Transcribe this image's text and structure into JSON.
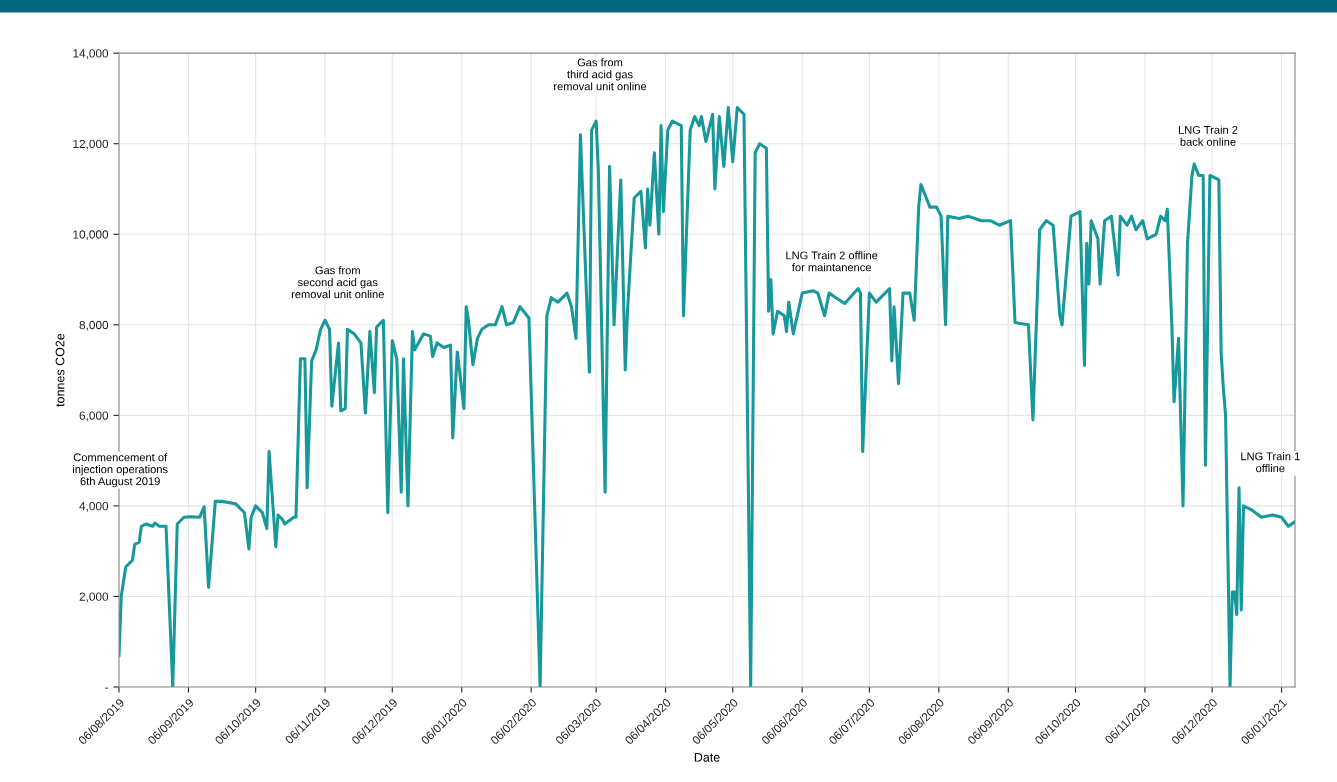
{
  "chart_data": {
    "type": "line",
    "xlabel": "Date",
    "ylabel": "tonnes CO2e",
    "grid": true,
    "legend": false,
    "marker": "none",
    "line_style": "solid",
    "ylim": [
      0,
      14000
    ],
    "yticks": [
      {
        "value": 0,
        "label": "-"
      },
      {
        "value": 2000,
        "label": "2,000"
      },
      {
        "value": 4000,
        "label": "4,000"
      },
      {
        "value": 6000,
        "label": "6,000"
      },
      {
        "value": 8000,
        "label": "8,000"
      },
      {
        "value": 10000,
        "label": "10,000"
      },
      {
        "value": 12000,
        "label": "12,000"
      },
      {
        "value": 14000,
        "label": "14,000"
      }
    ],
    "xlim": [
      "2019-08-06",
      "2021-01-12"
    ],
    "xticks": [
      {
        "value": "2019-08-06",
        "label": "06/08/2019"
      },
      {
        "value": "2019-09-06",
        "label": "06/09/2019"
      },
      {
        "value": "2019-10-06",
        "label": "06/10/2019"
      },
      {
        "value": "2019-11-06",
        "label": "06/11/2019"
      },
      {
        "value": "2019-12-06",
        "label": "06/12/2019"
      },
      {
        "value": "2020-01-06",
        "label": "06/01/2020"
      },
      {
        "value": "2020-02-06",
        "label": "06/02/2020"
      },
      {
        "value": "2020-03-06",
        "label": "06/03/2020"
      },
      {
        "value": "2020-04-06",
        "label": "06/04/2020"
      },
      {
        "value": "2020-05-06",
        "label": "06/05/2020"
      },
      {
        "value": "2020-06-06",
        "label": "06/06/2020"
      },
      {
        "value": "2020-07-06",
        "label": "06/07/2020"
      },
      {
        "value": "2020-08-06",
        "label": "06/08/2020"
      },
      {
        "value": "2020-09-06",
        "label": "06/09/2020"
      },
      {
        "value": "2020-10-06",
        "label": "06/10/2020"
      },
      {
        "value": "2020-11-06",
        "label": "06/11/2020"
      },
      {
        "value": "2020-12-06",
        "label": "06/12/2020"
      },
      {
        "value": "2021-01-06",
        "label": "06/01/2021"
      }
    ],
    "annotations": [
      "Commencement of\ninjection operations\n6th August 2019",
      "Gas from\nsecond acid gas\nremoval unit online",
      "Gas from\nthird acid gas\nremoval unit online",
      "LNG Train 2 offline\nfor maintanence",
      "LNG Train 2\nback online",
      "LNG Train 1\noffline"
    ],
    "series": [
      {
        "color": "#17989a",
        "x": [
          "2019-08-06",
          "2019-08-07",
          "2019-08-09",
          "2019-08-12",
          "2019-08-13",
          "2019-08-15",
          "2019-08-16",
          "2019-08-18",
          "2019-08-21",
          "2019-08-22",
          "2019-08-24",
          "2019-08-27",
          "2019-08-30",
          "2019-09-01",
          "2019-09-04",
          "2019-09-07",
          "2019-09-11",
          "2019-09-13",
          "2019-09-15",
          "2019-09-18",
          "2019-09-21",
          "2019-09-27",
          "2019-10-01",
          "2019-10-03",
          "2019-10-04",
          "2019-10-06",
          "2019-10-09",
          "2019-10-11",
          "2019-10-12",
          "2019-10-13",
          "2019-10-15",
          "2019-10-16",
          "2019-10-18",
          "2019-10-19",
          "2019-10-23",
          "2019-10-24",
          "2019-10-26",
          "2019-10-28",
          "2019-10-29",
          "2019-10-31",
          "2019-11-02",
          "2019-11-04",
          "2019-11-06",
          "2019-11-08",
          "2019-11-09",
          "2019-11-12",
          "2019-11-13",
          "2019-11-15",
          "2019-11-16",
          "2019-11-19",
          "2019-11-22",
          "2019-11-24",
          "2019-11-26",
          "2019-11-28",
          "2019-11-29",
          "2019-12-02",
          "2019-12-04",
          "2019-12-06",
          "2019-12-08",
          "2019-12-10",
          "2019-12-11",
          "2019-12-13",
          "2019-12-15",
          "2019-12-16",
          "2019-12-20",
          "2019-12-23",
          "2019-12-24",
          "2019-12-26",
          "2019-12-29",
          "2020-01-01",
          "2020-01-02",
          "2020-01-04",
          "2020-01-05",
          "2020-01-07",
          "2020-01-08",
          "2020-01-09",
          "2020-01-11",
          "2020-01-13",
          "2020-01-15",
          "2020-01-18",
          "2020-01-21",
          "2020-01-24",
          "2020-01-26",
          "2020-01-29",
          "2020-02-01",
          "2020-02-05",
          "2020-02-10",
          "2020-02-13",
          "2020-02-15",
          "2020-02-18",
          "2020-02-22",
          "2020-02-24",
          "2020-02-26",
          "2020-02-28",
          "2020-03-03",
          "2020-03-04",
          "2020-03-06",
          "2020-03-07",
          "2020-03-10",
          "2020-03-12",
          "2020-03-14",
          "2020-03-17",
          "2020-03-19",
          "2020-03-20",
          "2020-03-23",
          "2020-03-26",
          "2020-03-28",
          "2020-03-29",
          "2020-03-30",
          "2020-04-01",
          "2020-04-03",
          "2020-04-04",
          "2020-04-05",
          "2020-04-07",
          "2020-04-09",
          "2020-04-13",
          "2020-04-14",
          "2020-04-17",
          "2020-04-19",
          "2020-04-21",
          "2020-04-22",
          "2020-04-24",
          "2020-04-27",
          "2020-04-28",
          "2020-04-30",
          "2020-05-02",
          "2020-05-04",
          "2020-05-06",
          "2020-05-08",
          "2020-05-11",
          "2020-05-14",
          "2020-05-16",
          "2020-05-18",
          "2020-05-21",
          "2020-05-22",
          "2020-05-23",
          "2020-05-24",
          "2020-05-26",
          "2020-05-29",
          "2020-05-30",
          "2020-05-31",
          "2020-06-02",
          "2020-06-06",
          "2020-06-11",
          "2020-06-13",
          "2020-06-16",
          "2020-06-18",
          "2020-06-21",
          "2020-06-25",
          "2020-07-01",
          "2020-07-02",
          "2020-07-03",
          "2020-07-06",
          "2020-07-09",
          "2020-07-15",
          "2020-07-16",
          "2020-07-17",
          "2020-07-19",
          "2020-07-21",
          "2020-07-24",
          "2020-07-26",
          "2020-07-28",
          "2020-07-29",
          "2020-08-02",
          "2020-08-05",
          "2020-08-07",
          "2020-08-09",
          "2020-08-10",
          "2020-08-15",
          "2020-08-19",
          "2020-08-25",
          "2020-08-29",
          "2020-09-02",
          "2020-09-07",
          "2020-09-09",
          "2020-09-15",
          "2020-09-17",
          "2020-09-20",
          "2020-09-23",
          "2020-09-26",
          "2020-09-29",
          "2020-09-30",
          "2020-10-04",
          "2020-10-08",
          "2020-10-10",
          "2020-10-11",
          "2020-10-12",
          "2020-10-13",
          "2020-10-16",
          "2020-10-17",
          "2020-10-19",
          "2020-10-22",
          "2020-10-25",
          "2020-10-26",
          "2020-10-29",
          "2020-10-31",
          "2020-11-02",
          "2020-11-05",
          "2020-11-07",
          "2020-11-11",
          "2020-11-13",
          "2020-11-15",
          "2020-11-16",
          "2020-11-18",
          "2020-11-19",
          "2020-11-21",
          "2020-11-23",
          "2020-11-25",
          "2020-11-27",
          "2020-11-28",
          "2020-11-30",
          "2020-12-02",
          "2020-12-03",
          "2020-12-05",
          "2020-12-09",
          "2020-12-10",
          "2020-12-11",
          "2020-12-12",
          "2020-12-14",
          "2020-12-15",
          "2020-12-16",
          "2020-12-17",
          "2020-12-18",
          "2020-12-19",
          "2020-12-20",
          "2020-12-24",
          "2020-12-28",
          "2021-01-02",
          "2021-01-06",
          "2021-01-09",
          "2021-01-12"
        ],
        "values": [
          700,
          2000,
          2650,
          2800,
          3150,
          3200,
          3550,
          3600,
          3550,
          3620,
          3550,
          3550,
          0,
          3600,
          3750,
          3760,
          3750,
          3980,
          2200,
          4100,
          4100,
          4050,
          3850,
          3050,
          3750,
          4000,
          3850,
          3500,
          5200,
          4500,
          3100,
          3800,
          3700,
          3600,
          3750,
          3750,
          7250,
          7250,
          4400,
          7200,
          7450,
          7900,
          8100,
          7900,
          6200,
          7600,
          6100,
          6150,
          7900,
          7800,
          7600,
          6050,
          7850,
          6500,
          7950,
          8100,
          3850,
          7650,
          7250,
          4300,
          7250,
          4000,
          7850,
          7450,
          7800,
          7750,
          7300,
          7600,
          7500,
          7550,
          5500,
          7400,
          7000,
          6150,
          8400,
          8100,
          7120,
          7700,
          7900,
          8000,
          8000,
          8400,
          8000,
          8050,
          8400,
          8150,
          0,
          8200,
          8600,
          8500,
          8700,
          8400,
          7700,
          12200,
          6950,
          12300,
          12500,
          11400,
          4300,
          11500,
          8000,
          11200,
          7000,
          8300,
          10800,
          10950,
          9700,
          11000,
          10200,
          11800,
          10000,
          12400,
          10500,
          12300,
          12500,
          12400,
          8200,
          12300,
          12600,
          12400,
          12600,
          12050,
          12650,
          11000,
          12600,
          11500,
          12800,
          11600,
          12800,
          12650,
          0,
          11800,
          12000,
          11900,
          8300,
          9000,
          7800,
          8300,
          8200,
          7850,
          8500,
          7800,
          8700,
          8750,
          8700,
          8200,
          8700,
          8600,
          8470,
          8800,
          8700,
          5200,
          8700,
          8500,
          8800,
          7200,
          8400,
          6700,
          8700,
          8700,
          8100,
          10600,
          11100,
          10600,
          10600,
          10400,
          8000,
          10400,
          10350,
          10400,
          10300,
          10300,
          10200,
          10300,
          8050,
          8000,
          5900,
          10100,
          10300,
          10200,
          8200,
          8000,
          10400,
          10500,
          7100,
          9800,
          8900,
          10300,
          9900,
          8900,
          10300,
          10400,
          9100,
          10400,
          10200,
          10400,
          10100,
          10300,
          9900,
          10000,
          10400,
          10300,
          10550,
          8000,
          6300,
          7700,
          4000,
          9800,
          11300,
          11550,
          11300,
          11300,
          4900,
          11300,
          11200,
          7400,
          6600,
          6000,
          0,
          2100,
          2100,
          1600,
          4400,
          1700,
          4000,
          3900,
          3750,
          3800,
          3750,
          3550,
          3650
        ]
      }
    ]
  }
}
